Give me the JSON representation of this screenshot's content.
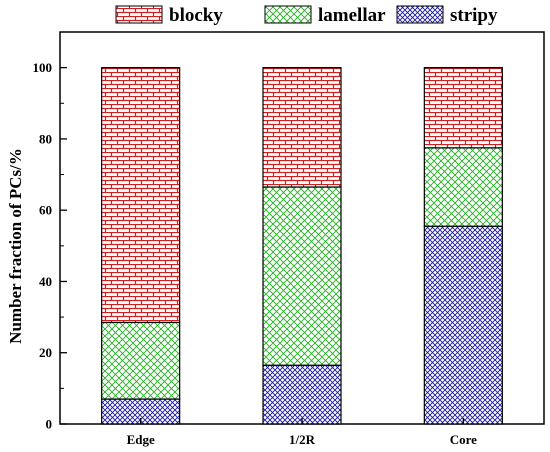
{
  "chart_data": {
    "type": "bar",
    "stacked": true,
    "categories": [
      "Edge",
      "1/2R",
      "Core"
    ],
    "series": [
      {
        "name": "stripy",
        "values": [
          7,
          16.5,
          55.5
        ],
        "color": "#1a1aa0",
        "pattern": "cross-hatch"
      },
      {
        "name": "lamellar",
        "values": [
          21.5,
          50,
          22
        ],
        "color": "#22b022",
        "pattern": "diagonal-grid"
      },
      {
        "name": "blocky",
        "values": [
          71.5,
          33.5,
          22.5
        ],
        "color": "#d02020",
        "pattern": "brick"
      }
    ],
    "legend_order": [
      "blocky",
      "lamellar",
      "stripy"
    ],
    "legend_position": "top",
    "ylabel": "Number fraction of PCs/%",
    "xlabel": "",
    "ylim": [
      0,
      110
    ],
    "yticks": [
      0,
      20,
      40,
      60,
      80,
      100
    ],
    "grid": false
  }
}
